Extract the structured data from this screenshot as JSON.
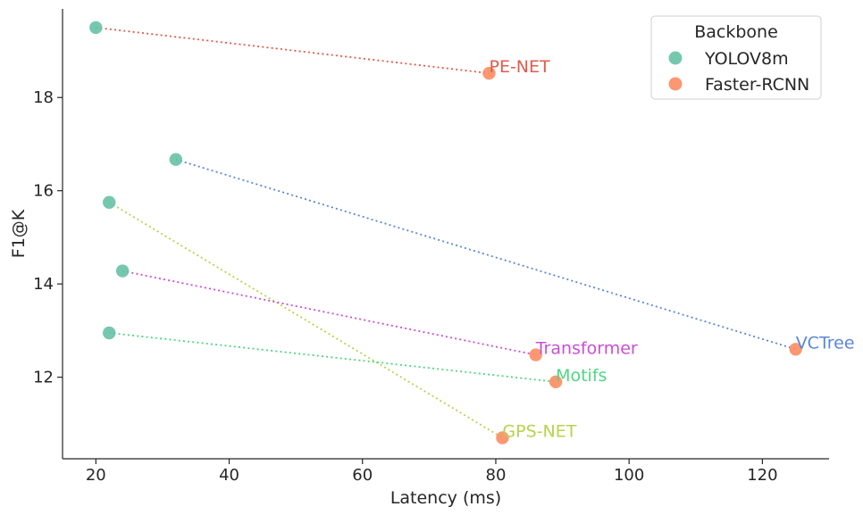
{
  "chart_data": {
    "type": "scatter",
    "xlabel": "Latency (ms)",
    "ylabel": "F1@K",
    "xlim": [
      15,
      130
    ],
    "ylim": [
      10.25,
      19.9
    ],
    "xticks": [
      20,
      40,
      60,
      80,
      100,
      120
    ],
    "yticks": [
      12,
      14,
      16,
      18
    ],
    "grid": false,
    "legend": {
      "title": "Backbone",
      "placement": "top-right",
      "entries": [
        {
          "name": "YOLOV8m",
          "color": "#66c2a5"
        },
        {
          "name": "Faster-RCNN",
          "color": "#fc8d62"
        }
      ]
    },
    "series": [
      {
        "name": "YOLOV8m",
        "color": "#66c2a5",
        "points": [
          {
            "model": "PE-NET",
            "x": 20,
            "y": 19.5
          },
          {
            "model": "VCTree",
            "x": 32,
            "y": 16.67
          },
          {
            "model": "GPS-NET",
            "x": 22,
            "y": 15.75
          },
          {
            "model": "Transformer",
            "x": 24,
            "y": 14.28
          },
          {
            "model": "Motifs",
            "x": 22,
            "y": 12.95
          }
        ]
      },
      {
        "name": "Faster-RCNN",
        "color": "#fc8d62",
        "points": [
          {
            "model": "PE-NET",
            "x": 79,
            "y": 18.52
          },
          {
            "model": "VCTree",
            "x": 125,
            "y": 12.6
          },
          {
            "model": "GPS-NET",
            "x": 81,
            "y": 10.7
          },
          {
            "model": "Transformer",
            "x": 86,
            "y": 12.48
          },
          {
            "model": "Motifs",
            "x": 89,
            "y": 11.9
          }
        ]
      }
    ],
    "connections": [
      {
        "label": "PE-NET",
        "color": "#e05b4b"
      },
      {
        "label": "VCTree",
        "color": "#5b86d6"
      },
      {
        "label": "GPS-NET",
        "color": "#b5d44a"
      },
      {
        "label": "Transformer",
        "color": "#c94fd6"
      },
      {
        "label": "Motifs",
        "color": "#4fd684"
      }
    ]
  }
}
